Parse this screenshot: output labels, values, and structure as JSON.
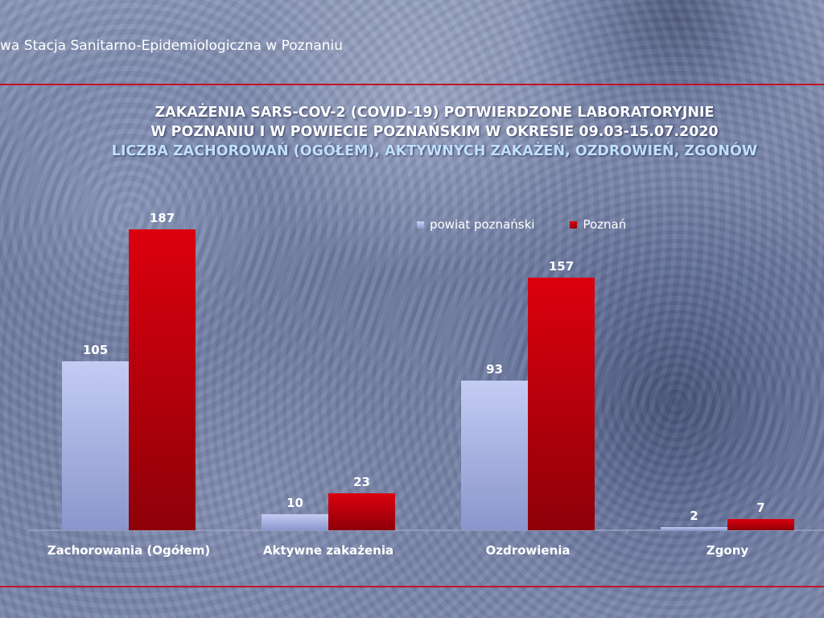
{
  "header": {
    "organization_text": "wa Stacja Sanitarno-Epidemiologiczna w Poznaniu"
  },
  "chart_data": {
    "type": "bar",
    "title_lines": [
      "ZAKAŻENIA SARS-COV-2 (COVID-19) POTWIERDZONE LABORATORYJNIE",
      "W POZNANIU I W POWIECIE POZNAŃSKIM W OKRESIE 09.03-15.07.2020"
    ],
    "subtitle": "LICZBA ZACHOROWAŃ (OGÓŁEM), AKTYWNYCH ZAKAŻEŃ, OZDROWIEŃ, ZGONÓW",
    "categories": [
      "Zachorowania (Ogółem)",
      "Aktywne zakażenia",
      "Ozdrowienia",
      "Zgony"
    ],
    "series": [
      {
        "name": "powiat poznański",
        "values": [
          105,
          10,
          93,
          2
        ],
        "color": "#aab4e8"
      },
      {
        "name": "Poznań",
        "values": [
          187,
          23,
          157,
          7
        ],
        "color": "#c8000d"
      }
    ],
    "ylim": [
      0,
      200
    ],
    "grid": false,
    "legend_position": "top-right",
    "data_labels": true
  }
}
